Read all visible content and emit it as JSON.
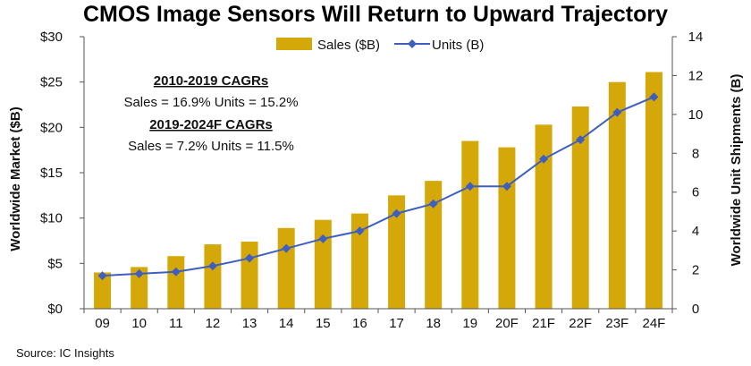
{
  "chart_data": {
    "type": "bar+line",
    "title": "CMOS Image Sensors Will Return to Upward Trajectory",
    "categories": [
      "09",
      "10",
      "11",
      "12",
      "13",
      "14",
      "15",
      "16",
      "17",
      "18",
      "19",
      "20F",
      "21F",
      "22F",
      "23F",
      "24F"
    ],
    "series": [
      {
        "name": "Sales ($B)",
        "kind": "bar",
        "axis": "left",
        "color": "#d4a809",
        "values": [
          4.0,
          4.6,
          5.8,
          7.1,
          7.4,
          8.9,
          9.8,
          10.5,
          12.5,
          14.1,
          18.5,
          17.8,
          20.3,
          22.3,
          25.0,
          26.1
        ]
      },
      {
        "name": "Units (B)",
        "kind": "line",
        "axis": "right",
        "color": "#3f5fc0",
        "values": [
          1.7,
          1.8,
          1.9,
          2.2,
          2.6,
          3.1,
          3.6,
          4.0,
          4.9,
          5.4,
          6.3,
          6.3,
          7.7,
          8.7,
          10.1,
          10.9
        ]
      }
    ],
    "ylabel_left": "Worldwide Market ($B)",
    "ylabel_right": "Worldwide Unit Shipments (B)",
    "ylim_left": [
      0,
      30
    ],
    "ylim_right": [
      0,
      14
    ],
    "yticks_left": [
      "$0",
      "$5",
      "$10",
      "$15",
      "$20",
      "$25",
      "$30"
    ],
    "yticks_right": [
      "0",
      "2",
      "4",
      "6",
      "8",
      "10",
      "12",
      "14"
    ],
    "legend": {
      "position": "top-center",
      "entries": [
        "Sales ($B)",
        "Units (B)"
      ]
    },
    "annotations": {
      "heading_1": "2010-2019 CAGRs",
      "line_1": "Sales = 16.9%  Units = 15.2%",
      "heading_2": "2019-2024F CAGRs",
      "line_2": "Sales = 7.2%  Units = 11.5%"
    },
    "source": "Source: IC Insights",
    "grid": false
  }
}
